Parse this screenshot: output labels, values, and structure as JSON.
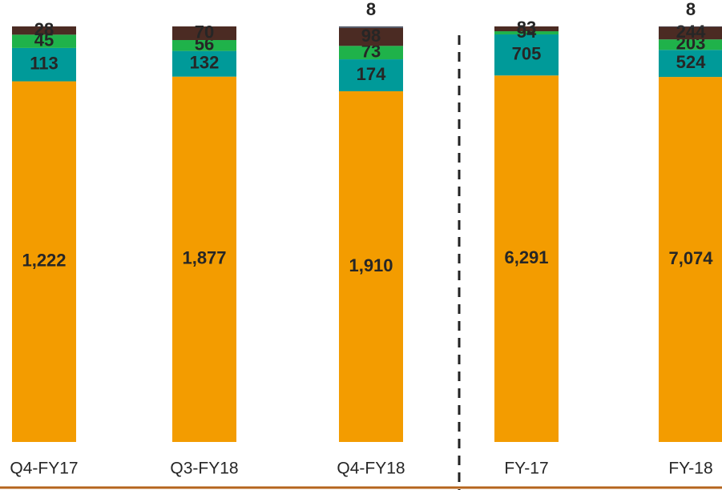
{
  "chart_data": {
    "type": "stacked_bar_percent",
    "categories": [
      "Q4-FY17",
      "Q3-FY18",
      "Q4-FY18",
      "FY-17",
      "FY-18"
    ],
    "series": [
      {
        "color": "#f39c00",
        "values": [
          1222,
          1877,
          1910,
          6291,
          7074
        ],
        "value_labels": [
          "1,222",
          "1,877",
          "1,910",
          "6,291",
          "7,074"
        ]
      },
      {
        "color": "#009a99",
        "values": [
          113,
          132,
          174,
          705,
          524
        ]
      },
      {
        "color": "#1fb24a",
        "values": [
          45,
          56,
          73,
          54,
          203
        ]
      },
      {
        "color": "#4b2b23",
        "values": [
          28,
          70,
          98,
          83,
          244
        ]
      },
      {
        "color": "#4a5060",
        "values": [
          null,
          null,
          8,
          null,
          8
        ]
      }
    ]
  }
}
